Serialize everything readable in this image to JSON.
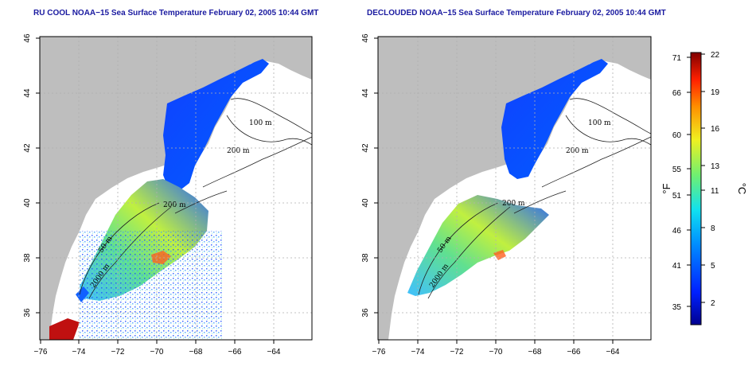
{
  "maps": [
    {
      "title": "RU COOL NOAA−15 Sea Surface Temperature February 02, 2005 10:44 GMT",
      "x_ticks": [
        "−76",
        "−74",
        "−72",
        "−70",
        "−68",
        "−66",
        "−64"
      ],
      "y_ticks": [
        "46",
        "44",
        "42",
        "40",
        "38",
        "36"
      ],
      "contour_labels": [
        "100 m",
        "200 m",
        "200 m",
        "50 m",
        "2000 m"
      ]
    },
    {
      "title": "DECLOUDED NOAA−15 Sea Surface Temperature February 02, 2005 10:44 GMT",
      "x_ticks": [
        "−76",
        "−74",
        "−72",
        "−70",
        "−68",
        "−66",
        "−64"
      ],
      "y_ticks": [
        "46",
        "44",
        "42",
        "40",
        "38",
        "36"
      ],
      "contour_labels": [
        "100 m",
        "200 m",
        "200 m",
        "50 m",
        "2000 m"
      ]
    }
  ],
  "colorbar": {
    "fahrenheit_ticks": [
      "71",
      "66",
      "60",
      "55",
      "51",
      "46",
      "41",
      "35"
    ],
    "celsius_ticks": [
      "22",
      "19",
      "16",
      "13",
      "11",
      "8",
      "5",
      "2"
    ],
    "unit_f": "°F",
    "unit_c": "°C"
  },
  "colors": {
    "land": "#bebebe",
    "ocean": "#ffffff",
    "title": "#1a1aa0",
    "grid": "#b0b0b0"
  }
}
